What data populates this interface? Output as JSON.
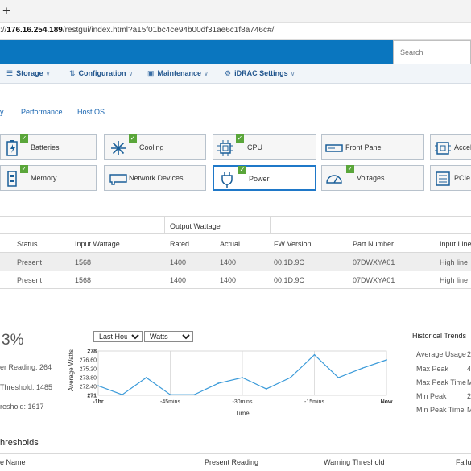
{
  "browser": {
    "new_tab_icon": "plus-icon",
    "url_prefix": "://",
    "url_host": "176.16.254.189",
    "url_path": "/restgui/index.html?a15f01bc4ce94b00df31ae6c1f8a746c#/"
  },
  "header": {
    "search_placeholder": "Search"
  },
  "menu": [
    {
      "label": "Storage",
      "icon": "storage-icon"
    },
    {
      "label": "Configuration",
      "icon": "sliders-icon"
    },
    {
      "label": "Maintenance",
      "icon": "maintenance-icon"
    },
    {
      "label": "iDRAC Settings",
      "icon": "gears-icon"
    }
  ],
  "subtabs": [
    "y",
    "Performance",
    "Host OS"
  ],
  "tiles": [
    {
      "label": "Batteries",
      "icon": "battery-icon",
      "checked": true
    },
    {
      "label": "Cooling",
      "icon": "fan-icon",
      "checked": true
    },
    {
      "label": "CPU",
      "icon": "cpu-icon",
      "checked": true
    },
    {
      "label": "Front Panel",
      "icon": "front-panel-icon",
      "checked": false
    },
    {
      "label": "Accel",
      "icon": "accelerator-icon",
      "checked": false
    },
    {
      "label": "Memory",
      "icon": "memory-icon",
      "checked": true
    },
    {
      "label": "Network Devices",
      "icon": "network-card-icon",
      "checked": false
    },
    {
      "label": "Power",
      "icon": "power-plug-icon",
      "checked": true
    },
    {
      "label": "Voltages",
      "icon": "voltage-icon",
      "checked": true
    },
    {
      "label": "PCIe S",
      "icon": "pcie-slot-icon",
      "checked": false
    }
  ],
  "psu_table": {
    "group_header": "Output Wattage",
    "headers": [
      "Status",
      "Input Wattage",
      "Rated",
      "Actual",
      "FW Version",
      "Part Number",
      "Input Line"
    ],
    "rows": [
      [
        "Present",
        "1568",
        "1400",
        "1400",
        "00.1D.9C",
        "07DWXYA01",
        "High line"
      ],
      [
        "Present",
        "1568",
        "1400",
        "1400",
        "00.1D.9C",
        "07DWXYA01",
        "High line"
      ]
    ]
  },
  "power_stats": {
    "percent": "3%",
    "lines": [
      "er Reading: 264",
      "Threshold: 1485",
      "reshold: 1617"
    ]
  },
  "graph_controls": {
    "range_selected": "Last Hour",
    "unit_selected": "Watts"
  },
  "chart_data": {
    "type": "line",
    "ylabel": "Average Watts",
    "xlabel": "Time",
    "ylim": [
      271,
      278
    ],
    "y_ticks": [
      "278",
      "276.60",
      "275.20",
      "273.80",
      "272.40",
      "271"
    ],
    "x_ticks": [
      "-1hr",
      "-45mins",
      "-30mins",
      "-15mins",
      "Now"
    ],
    "x_minutes": [
      -60,
      -55,
      -50,
      -45,
      -40,
      -35,
      -30,
      -25,
      -20,
      -15,
      -10,
      -5,
      0
    ],
    "values": [
      272.5,
      271.1,
      273.8,
      271.1,
      271.1,
      272.9,
      273.8,
      272.0,
      273.8,
      277.4,
      273.8,
      275.3,
      276.6
    ],
    "line_color": "#3a9ad9",
    "grid": "vertical"
  },
  "historical": {
    "title": "Historical Trends",
    "labels": [
      "Average Usage",
      "Max Peak",
      "Max Peak Time",
      "Min Peak",
      "Min Peak Time"
    ],
    "values": [
      "2",
      "4",
      "M",
      "2",
      "M"
    ]
  },
  "thresholds": {
    "title": "hresholds",
    "headers": [
      "e Name",
      "Present Reading",
      "Warning Threshold",
      "Failu"
    ]
  },
  "colors": {
    "banner": "#0a76bf",
    "ok": "#5aa63a",
    "link": "#1b67b2",
    "selected": "#1f78c8"
  }
}
